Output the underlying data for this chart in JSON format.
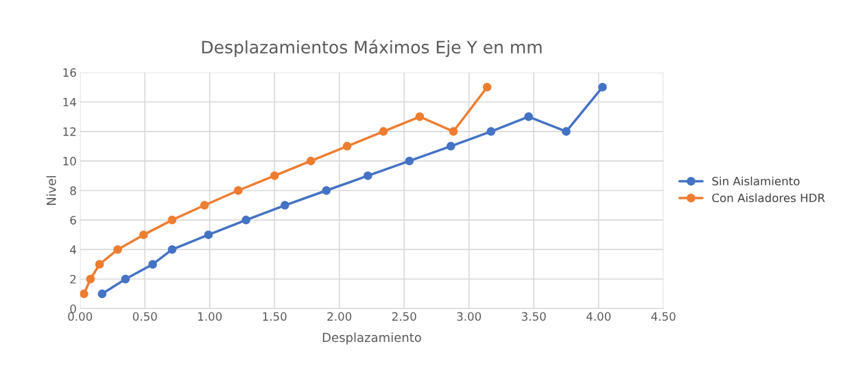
{
  "chart_data": {
    "type": "line",
    "title": "Desplazamientos Máximos Eje Y en mm",
    "xlabel": "Desplazamiento",
    "ylabel": "Nivel",
    "series": [
      {
        "name": "Sin Aislamiento",
        "color": "#4472c4",
        "x": [
          0.17,
          0.35,
          0.56,
          0.71,
          0.99,
          1.28,
          1.58,
          1.9,
          2.22,
          2.54,
          2.86,
          3.17,
          3.46,
          3.75,
          4.03
        ],
        "values": [
          1,
          2,
          3,
          4,
          5,
          6,
          7,
          8,
          9,
          10,
          11,
          12,
          13,
          12,
          15
        ]
      },
      {
        "name": "Con Aisladores HDR",
        "color": "#ed7d31",
        "x": [
          0.03,
          0.08,
          0.15,
          0.29,
          0.49,
          0.71,
          0.96,
          1.22,
          1.5,
          1.78,
          2.06,
          2.34,
          2.62,
          2.88,
          3.14
        ],
        "values": [
          1,
          2,
          3,
          4,
          5,
          6,
          7,
          8,
          9,
          10,
          11,
          12,
          13,
          12,
          15
        ]
      }
    ],
    "xlim": [
      0,
      4.5
    ],
    "xticks": [
      {
        "value": 0,
        "label": "0.00"
      },
      {
        "value": 0.5,
        "label": "0.50"
      },
      {
        "value": 1,
        "label": "1.00"
      },
      {
        "value": 1.5,
        "label": "1.50"
      },
      {
        "value": 2,
        "label": "2.00"
      },
      {
        "value": 2.5,
        "label": "2.50"
      },
      {
        "value": 3,
        "label": "3.00"
      },
      {
        "value": 3.5,
        "label": "3.50"
      },
      {
        "value": 4,
        "label": "4.00"
      },
      {
        "value": 4.5,
        "label": "4.50"
      }
    ],
    "ylim": [
      0,
      16
    ],
    "yticks": [
      0,
      2,
      4,
      6,
      8,
      10,
      12,
      14,
      16
    ],
    "grid": true,
    "legend": "right",
    "marker": "circle",
    "line_style": "solid"
  }
}
